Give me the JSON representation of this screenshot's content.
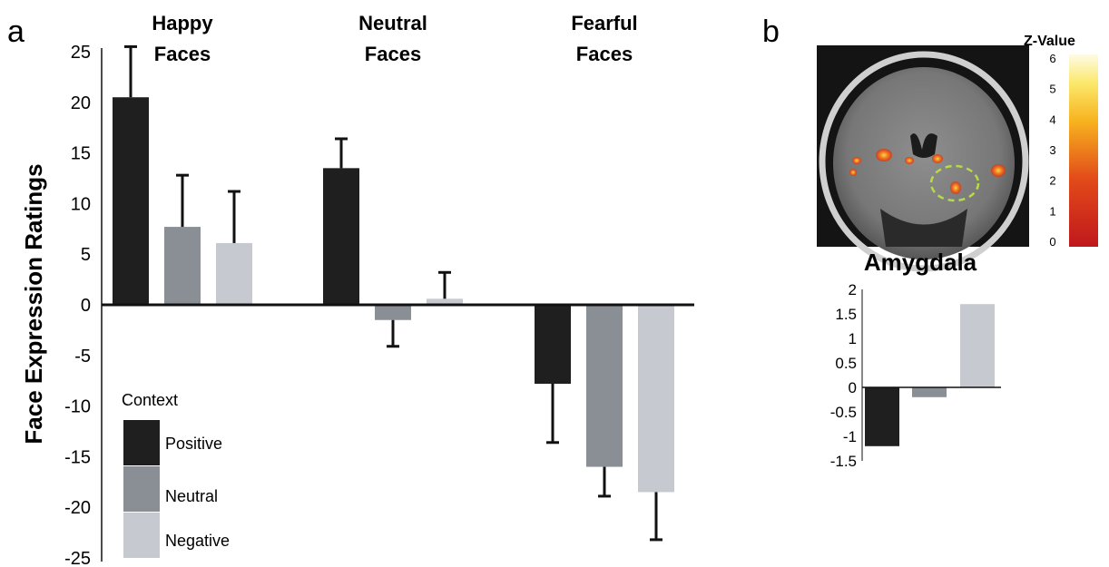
{
  "panels": {
    "a": "a",
    "b": "b"
  },
  "colors": {
    "positive": "#1f1f1f",
    "neutral": "#8a8f96",
    "negative": "#c6c9d0",
    "axis": "#111111"
  },
  "brain": {
    "region_title": "Amygdala",
    "colorbar_title": "Z-Value",
    "colorbar_ticks": [
      "0",
      "1",
      "2",
      "3",
      "4",
      "5",
      "6"
    ]
  },
  "chart_data": [
    {
      "type": "bar",
      "panel": "a",
      "ylabel": "Face Expression Ratings",
      "ylim": [
        -25,
        25
      ],
      "yticks": [
        25,
        20,
        15,
        10,
        5,
        0,
        -5,
        -10,
        -15,
        -20,
        -25
      ],
      "ytick_labels": [
        "25",
        "20",
        "15",
        "10",
        "5",
        "0",
        "-5",
        "-10",
        "-15",
        "-20",
        "-25"
      ],
      "categories": [
        "Happy Faces",
        "Neutral Faces",
        "Fearful Faces"
      ],
      "category_lines": [
        [
          "Happy",
          "Faces"
        ],
        [
          "Neutral",
          "Faces"
        ],
        [
          "Fearful",
          "Faces"
        ]
      ],
      "legend": {
        "title": "Context",
        "placement": "bottom-left",
        "entries": [
          "Positive",
          "Neutral",
          "Negative"
        ]
      },
      "series": [
        {
          "name": "Positive",
          "values": [
            20.5,
            13.5,
            -7.8
          ],
          "errors": [
            5.0,
            2.9,
            5.8
          ]
        },
        {
          "name": "Neutral",
          "values": [
            7.7,
            -1.5,
            -16.0
          ],
          "errors": [
            5.1,
            2.6,
            2.9
          ]
        },
        {
          "name": "Negative",
          "values": [
            6.1,
            0.6,
            -18.5
          ],
          "errors": [
            5.1,
            2.6,
            4.7
          ]
        }
      ]
    },
    {
      "type": "bar",
      "panel": "b",
      "ylim": [
        -1.5,
        2
      ],
      "yticks": [
        2,
        1.5,
        1,
        0.5,
        0,
        -0.5,
        -1,
        -1.5
      ],
      "ytick_labels": [
        "2",
        "1.5",
        "1",
        "0.5",
        "0",
        "-0.5",
        "-1",
        "-1.5"
      ],
      "series": [
        {
          "name": "Positive",
          "values": [
            -1.2
          ]
        },
        {
          "name": "Neutral",
          "values": [
            -0.2
          ]
        },
        {
          "name": "Negative",
          "values": [
            1.7
          ]
        }
      ]
    }
  ]
}
